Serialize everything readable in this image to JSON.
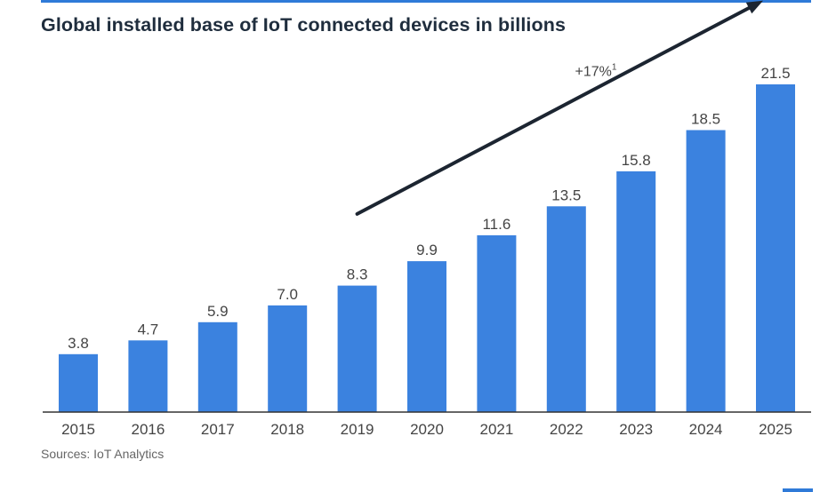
{
  "title": "Global installed base of IoT connected devices in billions",
  "source": "Sources: IoT Analytics",
  "chart_data": {
    "type": "bar",
    "title": "Global installed base of IoT connected devices in billions",
    "categories": [
      "2015",
      "2016",
      "2017",
      "2018",
      "2019",
      "2020",
      "2021",
      "2022",
      "2023",
      "2024",
      "2025"
    ],
    "values": [
      3.8,
      4.7,
      5.9,
      7.0,
      8.3,
      9.9,
      11.6,
      13.5,
      15.8,
      18.5,
      21.5
    ],
    "value_labels": [
      "3.8",
      "4.7",
      "5.9",
      "7.0",
      "8.3",
      "9.9",
      "11.6",
      "13.5",
      "15.8",
      "18.5",
      "21.5"
    ],
    "ylim": [
      0,
      23.6
    ],
    "grid": false,
    "bar_color": "#3b82df",
    "annotation": {
      "text": "+17%",
      "superscript": "1",
      "arrow_from_category": "2019",
      "arrow_to_category": "2025",
      "arrow_from_value": 13.0,
      "arrow_to_value": 27.0
    }
  }
}
